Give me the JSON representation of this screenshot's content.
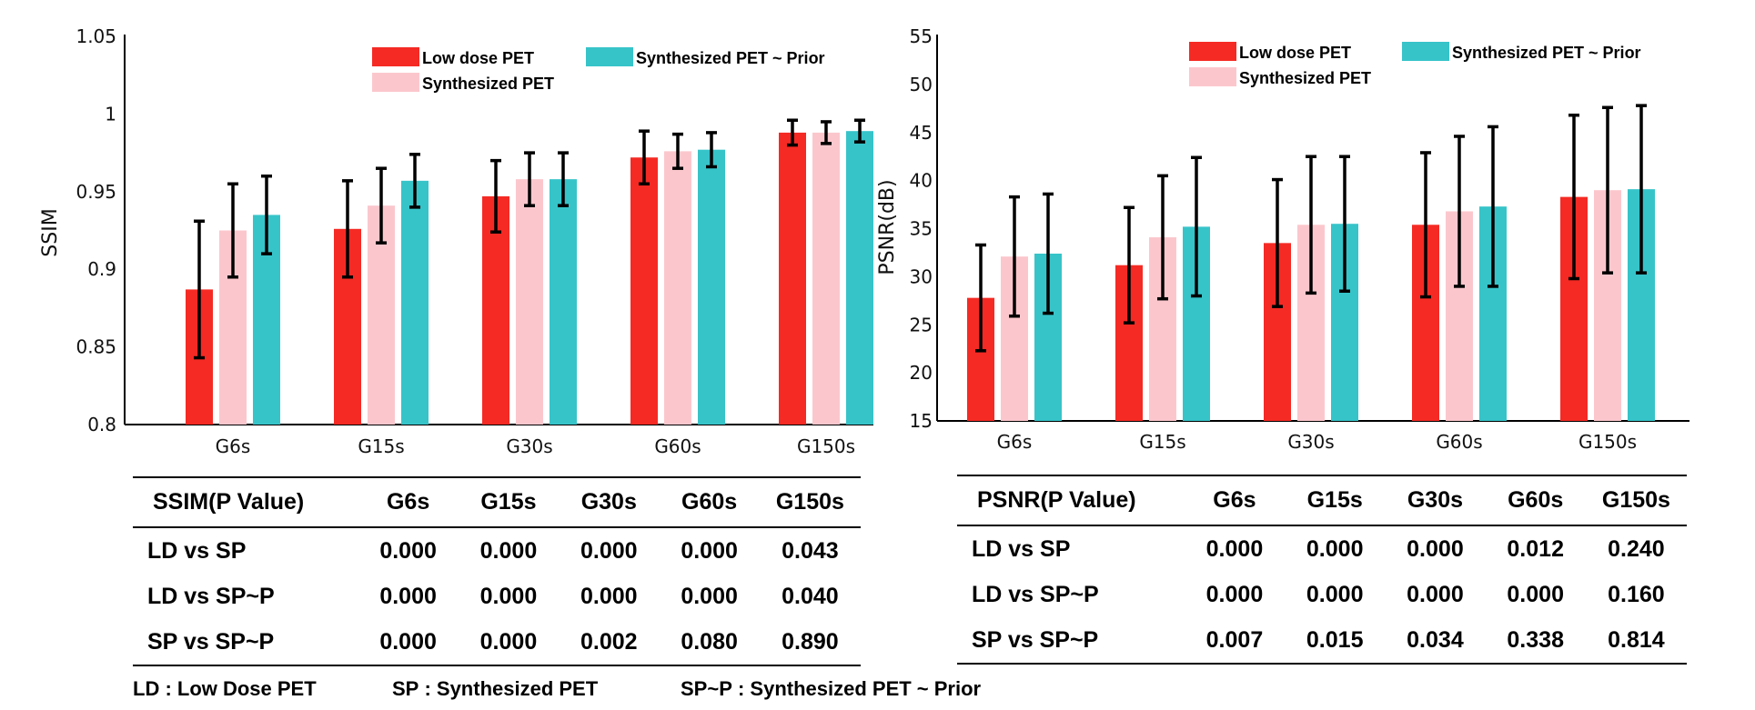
{
  "chart_data": [
    {
      "type": "bar",
      "id": "ssim",
      "ylabel": "SSIM",
      "xlabel": "",
      "ylim": [
        0.8,
        1.05
      ],
      "yticks": [
        0.8,
        0.85,
        0.9,
        0.95,
        1,
        1.05
      ],
      "ytick_labels": [
        "0.8",
        "0.85",
        "0.9",
        "0.95",
        "1",
        "1.05"
      ],
      "categories": [
        "G6s",
        "G15s",
        "G30s",
        "G60s",
        "G150s"
      ],
      "legend_position": "top-right",
      "series": [
        {
          "name": "Low dose PET",
          "color": "#f52a24",
          "values": [
            0.887,
            0.926,
            0.947,
            0.972,
            0.988
          ],
          "errors": [
            0.044,
            0.031,
            0.023,
            0.017,
            0.008
          ]
        },
        {
          "name": "Synthesized PET",
          "color": "#fbc7cd",
          "values": [
            0.925,
            0.941,
            0.958,
            0.976,
            0.988
          ],
          "errors": [
            0.03,
            0.024,
            0.017,
            0.011,
            0.007
          ]
        },
        {
          "name": "Synthesized PET ~ Prior",
          "color": "#36c4c9",
          "values": [
            0.935,
            0.957,
            0.958,
            0.977,
            0.989
          ],
          "errors": [
            0.025,
            0.017,
            0.017,
            0.011,
            0.007
          ]
        }
      ]
    },
    {
      "type": "bar",
      "id": "psnr",
      "ylabel": "PSNR(dB)",
      "xlabel": "",
      "ylim": [
        15,
        55
      ],
      "yticks": [
        15,
        20,
        25,
        30,
        35,
        40,
        45,
        50,
        55
      ],
      "ytick_labels": [
        "15",
        "20",
        "25",
        "30",
        "35",
        "40",
        "45",
        "50",
        "55"
      ],
      "categories": [
        "G6s",
        "G15s",
        "G30s",
        "G60s",
        "G150s"
      ],
      "legend_position": "top-right",
      "series": [
        {
          "name": "Low dose PET",
          "color": "#f52a24",
          "values": [
            27.8,
            31.2,
            33.5,
            35.4,
            38.3
          ],
          "errors": [
            5.5,
            6.0,
            6.6,
            7.5,
            8.5
          ]
        },
        {
          "name": "Synthesized PET",
          "color": "#fbc7cd",
          "values": [
            32.1,
            34.1,
            35.4,
            36.8,
            39.0
          ],
          "errors": [
            6.2,
            6.4,
            7.1,
            7.8,
            8.6
          ]
        },
        {
          "name": "Synthesized PET ~ Prior",
          "color": "#36c4c9",
          "values": [
            32.4,
            35.2,
            35.5,
            37.3,
            39.1
          ],
          "errors": [
            6.2,
            7.2,
            7.0,
            8.3,
            8.7
          ]
        }
      ]
    }
  ],
  "tables": {
    "ssim": {
      "header": [
        "SSIM(P Value)",
        "G6s",
        "G15s",
        "G30s",
        "G60s",
        "G150s"
      ],
      "rows": [
        {
          "label": "LD vs SP",
          "values": [
            "0.000",
            "0.000",
            "0.000",
            "0.000",
            "0.043"
          ]
        },
        {
          "label": "LD vs SP~P",
          "values": [
            "0.000",
            "0.000",
            "0.000",
            "0.000",
            "0.040"
          ]
        },
        {
          "label": "SP vs SP~P",
          "values": [
            "0.000",
            "0.000",
            "0.002",
            "0.080",
            "0.890"
          ]
        }
      ]
    },
    "psnr": {
      "header": [
        "PSNR(P Value)",
        "G6s",
        "G15s",
        "G30s",
        "G60s",
        "G150s"
      ],
      "rows": [
        {
          "label": "LD vs SP",
          "values": [
            "0.000",
            "0.000",
            "0.000",
            "0.012",
            "0.240"
          ]
        },
        {
          "label": "LD vs SP~P",
          "values": [
            "0.000",
            "0.000",
            "0.000",
            "0.000",
            "0.160"
          ]
        },
        {
          "label": "SP vs SP~P",
          "values": [
            "0.007",
            "0.015",
            "0.034",
            "0.338",
            "0.814"
          ]
        }
      ]
    }
  },
  "footnote": {
    "ld": "LD : Low Dose PET",
    "sp": "SP : Synthesized PET",
    "spp": "SP~P : Synthesized PET ~ Prior"
  }
}
